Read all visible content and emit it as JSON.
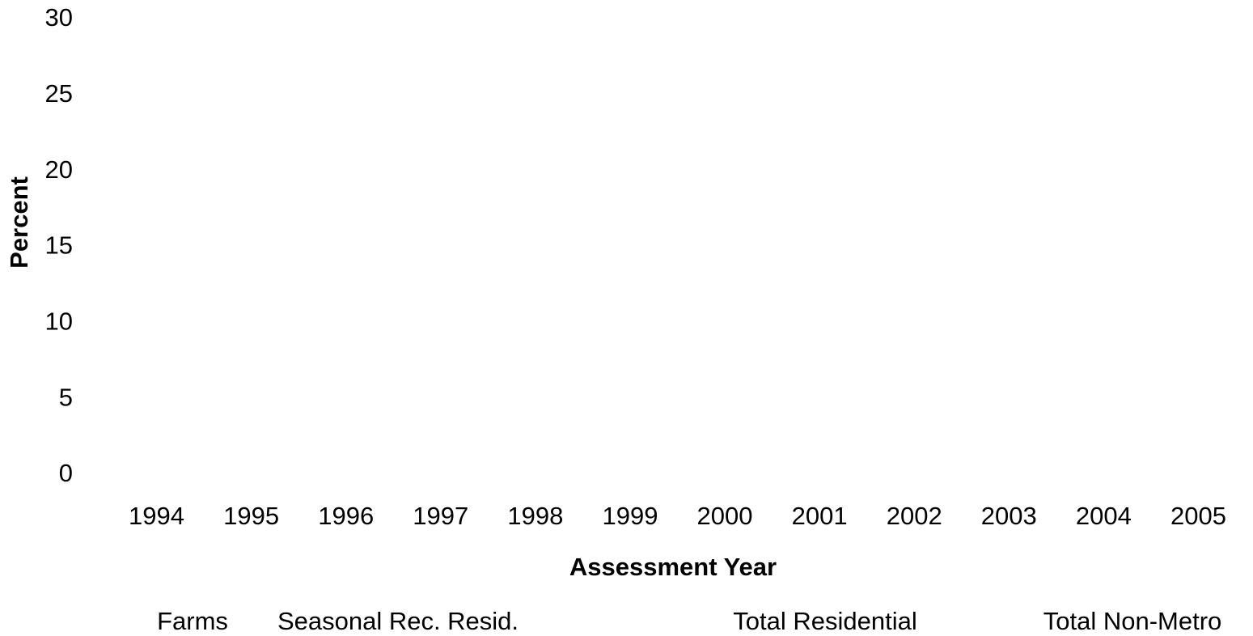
{
  "chart_data": {
    "type": "line",
    "xlabel": "Assessment Year",
    "ylabel": "Percent",
    "categories": [
      "1994",
      "1995",
      "1996",
      "1997",
      "1998",
      "1999",
      "2000",
      "2001",
      "2002",
      "2003",
      "2004",
      "2005"
    ],
    "series": [
      {
        "name": "Farms",
        "values": [
          null,
          null,
          null,
          null,
          null,
          null,
          null,
          null,
          null,
          null,
          null,
          null
        ]
      },
      {
        "name": "Seasonal Rec. Resid.",
        "values": [
          null,
          null,
          null,
          null,
          null,
          null,
          null,
          null,
          null,
          null,
          null,
          null
        ]
      },
      {
        "name": "Total Residential",
        "values": [
          null,
          null,
          null,
          null,
          null,
          null,
          null,
          null,
          null,
          null,
          null,
          null
        ]
      },
      {
        "name": "Total Non-Metro",
        "values": [
          null,
          null,
          null,
          null,
          null,
          null,
          null,
          null,
          null,
          null,
          null,
          null
        ]
      }
    ],
    "ylim": [
      0,
      30
    ],
    "yticks": [
      0,
      5,
      10,
      15,
      20,
      25,
      30
    ]
  }
}
